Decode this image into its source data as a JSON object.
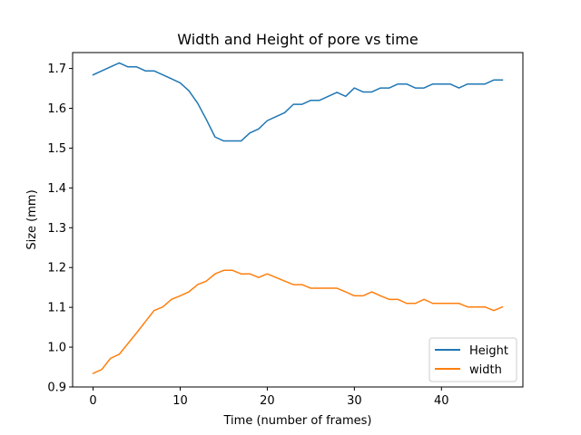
{
  "chart_data": {
    "type": "line",
    "title": "Width and Height of pore vs time",
    "xlabel": "Time (number of frames)",
    "ylabel": "Size (mm)",
    "xlim": [
      -2.35,
      49.35
    ],
    "ylim": [
      0.9,
      1.74
    ],
    "xticks": [
      0,
      10,
      20,
      30,
      40
    ],
    "yticks": [
      0.9,
      1.0,
      1.1,
      1.2,
      1.3,
      1.4,
      1.5,
      1.6,
      1.7
    ],
    "ytick_labels": [
      "0.9",
      "1.0",
      "1.1",
      "1.2",
      "1.3",
      "1.4",
      "1.5",
      "1.6",
      "1.7"
    ],
    "grid": false,
    "legend_position": "lower-right",
    "x": [
      0,
      1,
      2,
      3,
      4,
      5,
      6,
      7,
      8,
      9,
      10,
      11,
      12,
      13,
      14,
      15,
      16,
      17,
      18,
      19,
      20,
      21,
      22,
      23,
      24,
      25,
      26,
      27,
      28,
      29,
      30,
      31,
      32,
      33,
      34,
      35,
      36,
      37,
      38,
      39,
      40,
      41,
      42,
      43,
      44,
      45,
      46,
      47
    ],
    "series": [
      {
        "name": "Height",
        "color": "#1f77b4",
        "values": [
          1.684,
          1.694,
          1.704,
          1.714,
          1.704,
          1.704,
          1.694,
          1.694,
          1.684,
          1.674,
          1.664,
          1.644,
          1.613,
          1.572,
          1.528,
          1.518,
          1.518,
          1.518,
          1.538,
          1.548,
          1.569,
          1.579,
          1.589,
          1.61,
          1.61,
          1.62,
          1.62,
          1.63,
          1.64,
          1.63,
          1.651,
          1.641,
          1.641,
          1.651,
          1.651,
          1.661,
          1.661,
          1.651,
          1.651,
          1.661,
          1.661,
          1.661,
          1.651,
          1.661,
          1.661,
          1.661,
          1.671,
          1.671
        ]
      },
      {
        "name": "width",
        "color": "#ff7f0e",
        "values": [
          0.934,
          0.944,
          0.972,
          0.982,
          1.009,
          1.036,
          1.064,
          1.092,
          1.101,
          1.12,
          1.129,
          1.139,
          1.157,
          1.166,
          1.184,
          1.193,
          1.193,
          1.184,
          1.184,
          1.175,
          1.184,
          1.175,
          1.166,
          1.157,
          1.157,
          1.148,
          1.148,
          1.148,
          1.148,
          1.139,
          1.129,
          1.129,
          1.139,
          1.129,
          1.12,
          1.12,
          1.11,
          1.11,
          1.12,
          1.11,
          1.11,
          1.11,
          1.11,
          1.101,
          1.101,
          1.101,
          1.092,
          1.101
        ]
      }
    ]
  }
}
